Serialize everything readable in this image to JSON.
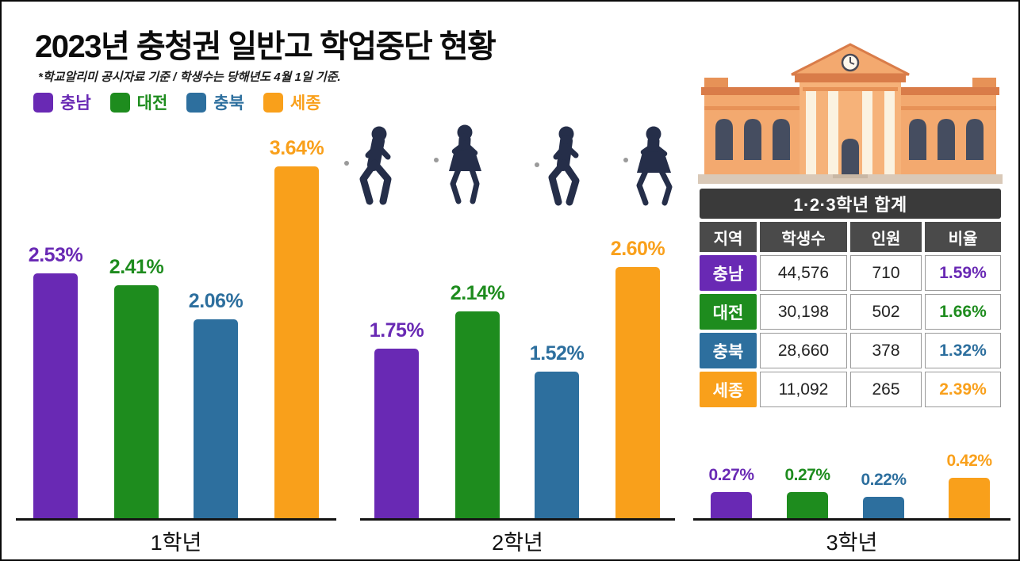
{
  "header": {
    "title": "2023년 충청권 일반고 학업중단 현황",
    "subtitle": "*학교알리미 공시자료 기준 / 학생수는 당해년도 4월 1일 기준."
  },
  "legend": [
    {
      "key": "chungnam",
      "label": "충남",
      "color": "#6929B4"
    },
    {
      "key": "daejeon",
      "label": "대전",
      "color": "#1E8C1E"
    },
    {
      "key": "chungbuk",
      "label": "충북",
      "color": "#2D6F9E"
    },
    {
      "key": "sejong",
      "label": "세종",
      "color": "#F9A01B"
    }
  ],
  "chart_data": {
    "type": "bar",
    "title": "2023년 충청권 일반고 학업중단 현황",
    "categories": [
      "1학년",
      "2학년",
      "3학년"
    ],
    "series": [
      {
        "key": "chungnam",
        "name": "충남",
        "color": "#6929B4",
        "values": [
          2.53,
          1.75,
          0.27
        ],
        "labels": [
          "2.53%",
          "1.75%",
          "0.27%"
        ]
      },
      {
        "key": "daejeon",
        "name": "대전",
        "color": "#1E8C1E",
        "values": [
          2.41,
          2.14,
          0.27
        ],
        "labels": [
          "2.41%",
          "2.14%",
          "0.27%"
        ]
      },
      {
        "key": "chungbuk",
        "name": "충북",
        "color": "#2D6F9E",
        "values": [
          2.06,
          1.52,
          0.22
        ],
        "labels": [
          "2.06%",
          "1.52%",
          "0.22%"
        ]
      },
      {
        "key": "sejong",
        "name": "세종",
        "color": "#F9A01B",
        "values": [
          3.64,
          2.6,
          0.42
        ],
        "labels": [
          "3.64%",
          "2.60%",
          "0.42%"
        ]
      }
    ],
    "unit": "%",
    "ylim": [
      0,
      4
    ],
    "grid": false,
    "legend_position": "top-left"
  },
  "summary_table": {
    "title": "1·2·3학년 합계",
    "columns": [
      "지역",
      "학생수",
      "인원",
      "비율"
    ],
    "rows": [
      {
        "key": "chungnam",
        "region": "충남",
        "students": "44,576",
        "count": "710",
        "rate": "1.59%",
        "color": "#6929B4"
      },
      {
        "key": "daejeon",
        "region": "대전",
        "students": "30,198",
        "count": "502",
        "rate": "1.66%",
        "color": "#1E8C1E"
      },
      {
        "key": "chungbuk",
        "region": "충북",
        "students": "28,660",
        "count": "378",
        "rate": "1.32%",
        "color": "#2D6F9E"
      },
      {
        "key": "sejong",
        "region": "세종",
        "students": "11,092",
        "count": "265",
        "rate": "2.39%",
        "color": "#F9A01B"
      }
    ]
  }
}
